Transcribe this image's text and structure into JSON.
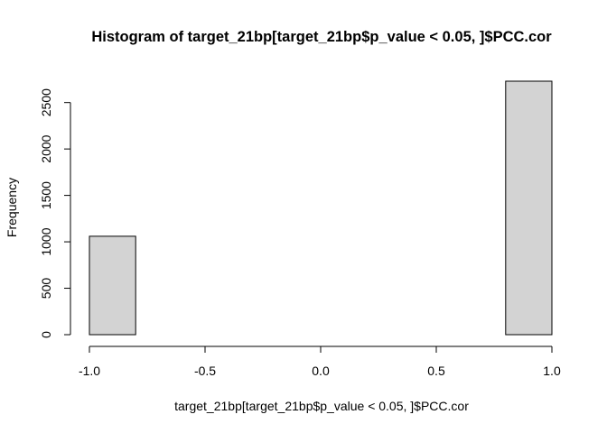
{
  "chart_data": {
    "type": "bar",
    "title": "Histogram of target_21bp[target_21bp$p_value < 0.05, ]$PCC.cor",
    "xlabel": "target_21bp[target_21bp$p_value < 0.05, ]$PCC.cor",
    "ylabel": "Frequency",
    "bins": [
      {
        "x0": -1.0,
        "x1": -0.8,
        "count": 1060
      },
      {
        "x0": -0.8,
        "x1": -0.6,
        "count": 0
      },
      {
        "x0": -0.6,
        "x1": -0.4,
        "count": 0
      },
      {
        "x0": -0.4,
        "x1": -0.2,
        "count": 0
      },
      {
        "x0": -0.2,
        "x1": 0.0,
        "count": 0
      },
      {
        "x0": 0.0,
        "x1": 0.2,
        "count": 0
      },
      {
        "x0": 0.2,
        "x1": 0.4,
        "count": 0
      },
      {
        "x0": 0.4,
        "x1": 0.6,
        "count": 0
      },
      {
        "x0": 0.6,
        "x1": 0.8,
        "count": 0
      },
      {
        "x0": 0.8,
        "x1": 1.0,
        "count": 2730
      }
    ],
    "xlim": [
      -1.0,
      1.0
    ],
    "ylim": [
      0,
      2730
    ],
    "xticks": [
      -1.0,
      -0.5,
      0.0,
      0.5,
      1.0
    ],
    "xtick_labels": [
      "-1.0",
      "-0.5",
      "0.0",
      "0.5",
      "1.0"
    ],
    "yticks": [
      0,
      500,
      1000,
      1500,
      2000,
      2500
    ],
    "ytick_labels": [
      "0",
      "500",
      "1000",
      "1500",
      "2000",
      "2500"
    ],
    "grid": false,
    "colors": {
      "bar_fill": "#d3d3d3",
      "bar_stroke": "#000000"
    }
  }
}
